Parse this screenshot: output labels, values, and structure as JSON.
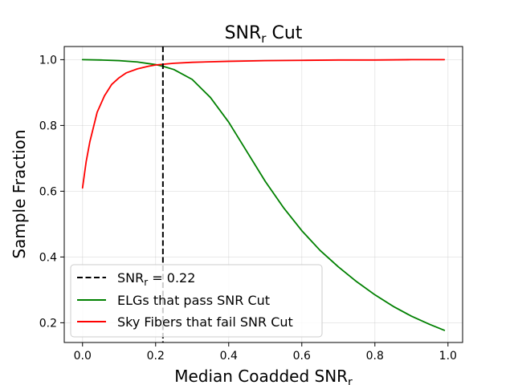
{
  "chart_data": {
    "type": "line",
    "title": "SNR",
    "title_subscript": "r",
    "title_suffix": " Cut",
    "xlabel": "Median Coadded SNR",
    "xlabel_subscript": "r",
    "ylabel": "Sample Fraction",
    "xlim": [
      -0.05,
      1.04
    ],
    "ylim": [
      0.14,
      1.04
    ],
    "xticks": [
      0.0,
      0.2,
      0.4,
      0.6,
      0.8,
      1.0
    ],
    "xtick_labels": [
      "0.0",
      "0.2",
      "0.4",
      "0.6",
      "0.8",
      "1.0"
    ],
    "yticks": [
      0.2,
      0.4,
      0.6,
      0.8,
      1.0
    ],
    "ytick_labels": [
      "0.2",
      "0.4",
      "0.6",
      "0.8",
      "1.0"
    ],
    "grid": true,
    "legend_position": "lower-left",
    "vline": {
      "x": 0.22,
      "label_prefix": "SNR",
      "label_subscript": "r",
      "label_suffix": " = 0.22",
      "color": "#000000",
      "style": "dashed"
    },
    "series": [
      {
        "name": "ELGs that pass SNR Cut",
        "color": "#008000",
        "x": [
          0.0,
          0.05,
          0.1,
          0.15,
          0.2,
          0.22,
          0.25,
          0.3,
          0.35,
          0.4,
          0.45,
          0.5,
          0.55,
          0.6,
          0.65,
          0.7,
          0.75,
          0.8,
          0.85,
          0.9,
          0.95,
          0.99
        ],
        "y": [
          1.0,
          0.999,
          0.997,
          0.993,
          0.985,
          0.98,
          0.97,
          0.94,
          0.885,
          0.81,
          0.72,
          0.63,
          0.55,
          0.48,
          0.42,
          0.37,
          0.325,
          0.285,
          0.25,
          0.22,
          0.195,
          0.177
        ]
      },
      {
        "name": "Sky Fibers that fail SNR Cut",
        "color": "#ff0000",
        "x": [
          0.0,
          0.01,
          0.02,
          0.04,
          0.06,
          0.08,
          0.1,
          0.12,
          0.15,
          0.18,
          0.2,
          0.25,
          0.3,
          0.4,
          0.5,
          0.6,
          0.7,
          0.8,
          0.9,
          0.99
        ],
        "y": [
          0.61,
          0.69,
          0.75,
          0.84,
          0.89,
          0.925,
          0.945,
          0.96,
          0.972,
          0.98,
          0.984,
          0.989,
          0.992,
          0.995,
          0.997,
          0.998,
          0.999,
          0.999,
          1.0,
          1.0
        ]
      }
    ]
  }
}
